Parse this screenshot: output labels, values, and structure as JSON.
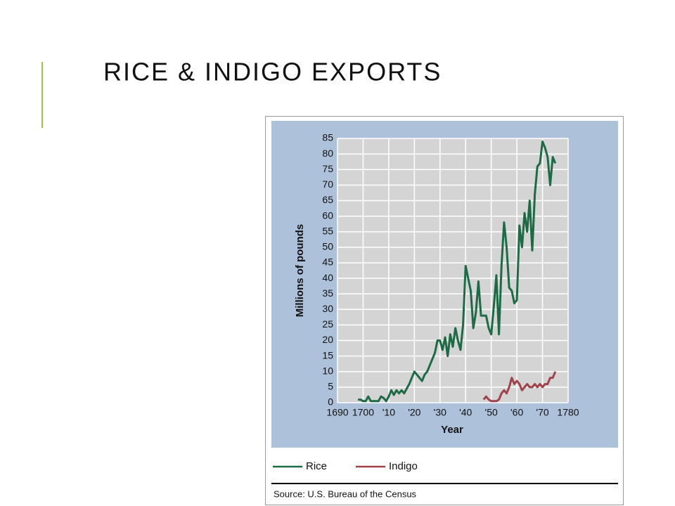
{
  "slide": {
    "title": "RICE & INDIGO EXPORTS"
  },
  "chart_data": {
    "type": "line",
    "y_label": "Millions of pounds",
    "x_label": "Year",
    "source": "Source: U.S. Bureau of the Census",
    "x": [
      1698,
      1699,
      1700,
      1701,
      1702,
      1703,
      1704,
      1705,
      1706,
      1707,
      1708,
      1709,
      1710,
      1711,
      1712,
      1713,
      1714,
      1715,
      1716,
      1717,
      1718,
      1719,
      1720,
      1721,
      1722,
      1723,
      1724,
      1725,
      1726,
      1727,
      1728,
      1729,
      1730,
      1731,
      1732,
      1733,
      1734,
      1735,
      1736,
      1737,
      1738,
      1739,
      1740,
      1741,
      1742,
      1743,
      1744,
      1745,
      1746,
      1747,
      1748,
      1749,
      1750,
      1751,
      1752,
      1753,
      1754,
      1755,
      1756,
      1757,
      1758,
      1759,
      1760,
      1761,
      1762,
      1763,
      1764,
      1765,
      1766,
      1767,
      1768,
      1769,
      1770,
      1771,
      1772,
      1773,
      1774,
      1775
    ],
    "series": [
      {
        "name": "Rice",
        "color": "#1d6b45",
        "values": [
          1,
          1,
          0.5,
          0.5,
          2,
          0.5,
          0.5,
          0.5,
          0.5,
          2,
          1.5,
          0.5,
          2,
          4,
          2.5,
          4,
          3,
          4,
          3,
          4.5,
          6,
          8,
          10,
          9,
          8,
          7,
          9,
          10,
          12,
          14,
          16,
          20,
          20,
          17,
          21,
          15,
          22,
          18,
          24,
          20,
          17,
          25,
          44,
          40,
          36,
          24,
          29,
          39,
          28,
          28,
          28,
          24,
          22,
          31,
          41,
          22,
          44,
          58,
          50,
          37,
          36,
          32,
          33,
          57,
          50,
          61,
          55,
          65,
          49,
          67,
          76,
          77,
          84,
          82,
          79,
          70,
          79,
          77
        ]
      },
      {
        "name": "Indigo",
        "color": "#a0434a",
        "values": [
          null,
          null,
          null,
          null,
          null,
          null,
          null,
          null,
          null,
          null,
          null,
          null,
          null,
          null,
          null,
          null,
          null,
          null,
          null,
          null,
          null,
          null,
          null,
          null,
          null,
          null,
          null,
          null,
          null,
          null,
          null,
          null,
          null,
          null,
          null,
          null,
          null,
          null,
          null,
          null,
          null,
          null,
          null,
          null,
          null,
          null,
          null,
          null,
          null,
          1,
          2,
          1,
          0.5,
          0.5,
          0.5,
          1,
          3,
          4,
          3,
          5,
          8,
          6,
          7,
          6,
          4,
          5,
          6,
          5,
          5,
          6,
          5,
          6,
          5,
          6,
          6,
          8,
          8,
          10
        ]
      }
    ],
    "xlim": [
      1690,
      1780
    ],
    "xticks": [
      1690,
      1700,
      {
        "value": 1710,
        "label": "'10"
      },
      {
        "value": 1720,
        "label": "'20"
      },
      {
        "value": 1730,
        "label": "'30"
      },
      {
        "value": 1740,
        "label": "'40"
      },
      {
        "value": 1750,
        "label": "'50"
      },
      {
        "value": 1760,
        "label": "'60"
      },
      {
        "value": 1770,
        "label": "'70"
      },
      1780
    ],
    "ylim": [
      0,
      85
    ],
    "yticks": [
      0,
      5,
      10,
      15,
      20,
      25,
      30,
      35,
      40,
      45,
      50,
      55,
      60,
      65,
      70,
      75,
      80,
      85
    ],
    "grid": true
  }
}
